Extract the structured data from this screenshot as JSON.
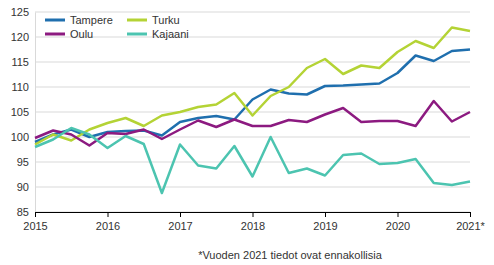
{
  "chart_data": {
    "type": "line",
    "categories": [
      "2015",
      null,
      null,
      null,
      "2016",
      null,
      null,
      null,
      "2017",
      null,
      null,
      null,
      "2018",
      null,
      null,
      null,
      "2019",
      null,
      null,
      null,
      "2020",
      null,
      null,
      null,
      "2021*"
    ],
    "series": [
      {
        "name": "Tampere",
        "color": "#1f6fae",
        "values": [
          99,
          100.5,
          101.5,
          100,
          101,
          101.2,
          101.3,
          100.3,
          103,
          103.8,
          104.2,
          103.5,
          107.5,
          109.5,
          108.7,
          108.5,
          110.2,
          110.3,
          110.5,
          110.7,
          112.8,
          116.3,
          115.2,
          117.2,
          117.5
        ]
      },
      {
        "name": "Turku",
        "color": "#b4d335",
        "values": [
          98.5,
          100.5,
          99.3,
          101.5,
          102.8,
          103.8,
          102.2,
          104.3,
          105,
          106,
          106.5,
          108.8,
          104.3,
          108.2,
          110,
          113.8,
          115.6,
          112.6,
          114.3,
          113.8,
          117,
          119.2,
          117.8,
          121.9,
          121.2
        ]
      },
      {
        "name": "Oulu",
        "color": "#8c1a80",
        "values": [
          99.8,
          101.3,
          100.5,
          98.3,
          100.8,
          100.6,
          101.5,
          99.6,
          101.5,
          103.3,
          102,
          103.5,
          102.2,
          102.2,
          103.4,
          103,
          104.5,
          105.8,
          103,
          103.2,
          103.2,
          102.2,
          107.2,
          103.1,
          105
        ]
      },
      {
        "name": "Kajaani",
        "color": "#4cc4b0",
        "values": [
          98,
          99.5,
          101.8,
          100.5,
          97.8,
          100.2,
          98.6,
          88.8,
          98.5,
          94.3,
          93.7,
          98.2,
          92.1,
          100,
          92.8,
          93.7,
          92.3,
          96.4,
          96.7,
          94.6,
          94.8,
          95.6,
          90.8,
          90.4,
          91.1
        ]
      }
    ],
    "ylim": [
      85,
      125
    ],
    "yticks": [
      85,
      90,
      95,
      100,
      105,
      110,
      115,
      120,
      125
    ],
    "grid": true,
    "legend": "top-left",
    "annotations": [
      "*Vuoden 2021 tiedot ovat ennakollisia"
    ]
  }
}
